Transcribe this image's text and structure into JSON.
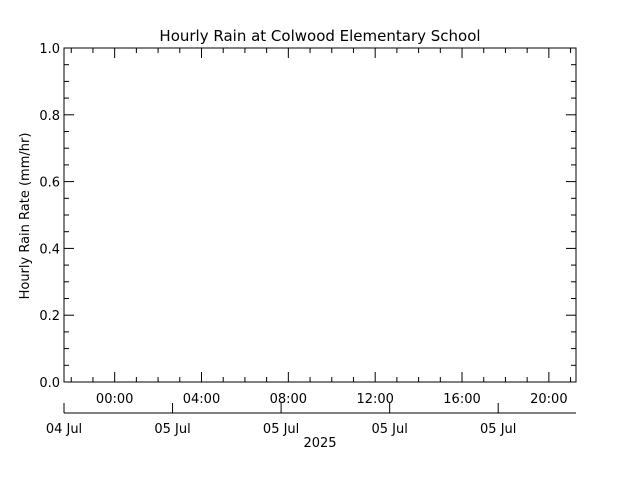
{
  "chart_data": {
    "type": "line",
    "title": "Hourly Rain at Colwood Elementary School",
    "ylabel": "Hourly Rain Rate (mm/hr)",
    "xlabel": "",
    "ylim": [
      0.0,
      1.0
    ],
    "y_ticks": [
      "0.0",
      "0.2",
      "0.4",
      "0.6",
      "0.8",
      "1.0"
    ],
    "x_range": [
      "2025-07-04 21:40",
      "2025-07-05 21:15"
    ],
    "x_ticks_time": [
      "00:00",
      "04:00",
      "08:00",
      "12:00",
      "16:00",
      "20:00"
    ],
    "x_ticks_date": [
      "04 Jul",
      "05 Jul",
      "05 Jul",
      "05 Jul",
      "05 Jul"
    ],
    "x_ticks_date_times": [
      "2025-07-04 21:40",
      "2025-07-05 02:40",
      "2025-07-05 07:40",
      "2025-07-05 12:40",
      "2025-07-05 17:40"
    ],
    "year_label": "2025",
    "series": [
      {
        "values": []
      }
    ],
    "grid": false
  }
}
